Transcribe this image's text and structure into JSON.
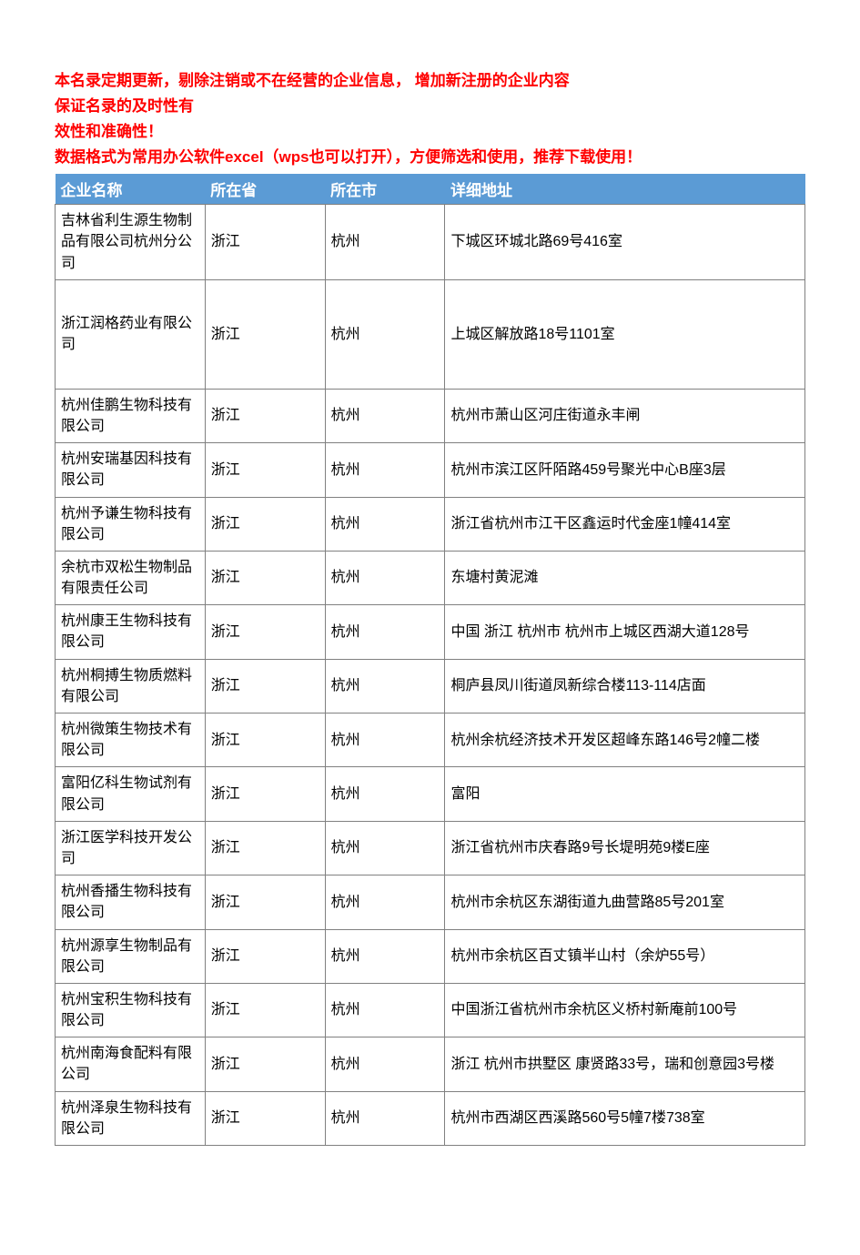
{
  "intro": {
    "line1": "本名录定期更新，剔除注销或不在经营的企业信息， 增加新注册的企业内容",
    "line2": "保证名录的及时性有",
    "line3": "效性和准确性！",
    "line4": "数据格式为常用办公软件excel（wps也可以打开），方便筛选和使用，推荐下载使用！"
  },
  "table": {
    "headers": {
      "name": "企业名称",
      "province": "所在省",
      "city": "所在市",
      "address": "详细地址"
    },
    "rows": [
      {
        "name": "吉林省利生源生物制品有限公司杭州分公司",
        "province": "浙江",
        "city": "杭州",
        "address": "下城区环城北路69号416室"
      },
      {
        "name": "浙江润格药业有限公司",
        "province": "浙江",
        "city": "杭州",
        "address": "上城区解放路18号1101室",
        "tall": true
      },
      {
        "name": "杭州佳鹏生物科技有限公司",
        "province": "浙江",
        "city": "杭州",
        "address": "杭州市萧山区河庄街道永丰闸"
      },
      {
        "name": "杭州安瑞基因科技有限公司",
        "province": "浙江",
        "city": "杭州",
        "address": "杭州市滨江区阡陌路459号聚光中心B座3层"
      },
      {
        "name": "杭州予谦生物科技有限公司",
        "province": "浙江",
        "city": "杭州",
        "address": "浙江省杭州市江干区鑫运时代金座1幢414室"
      },
      {
        "name": "余杭市双松生物制品有限责任公司",
        "province": "浙江",
        "city": "杭州",
        "address": "东塘村黄泥滩"
      },
      {
        "name": "杭州康王生物科技有限公司",
        "province": "浙江",
        "city": "杭州",
        "address": "中国  浙江  杭州市  杭州市上城区西湖大道128号"
      },
      {
        "name": "杭州桐搏生物质燃料有限公司",
        "province": "浙江",
        "city": "杭州",
        "address": "桐庐县凤川街道凤新综合楼113-114店面"
      },
      {
        "name": "杭州微策生物技术有限公司",
        "province": "浙江",
        "city": "杭州",
        "address": "杭州余杭经济技术开发区超峰东路146号2幢二楼"
      },
      {
        "name": "富阳亿科生物试剂有限公司",
        "province": "浙江",
        "city": "杭州",
        "address": "富阳"
      },
      {
        "name": "浙江医学科技开发公司",
        "province": "浙江",
        "city": "杭州",
        "address": "浙江省杭州市庆春路9号长堤明苑9楼E座"
      },
      {
        "name": "杭州香播生物科技有限公司",
        "province": "浙江",
        "city": "杭州",
        "address": "杭州市余杭区东湖街道九曲营路85号201室"
      },
      {
        "name": "杭州源享生物制品有限公司",
        "province": "浙江",
        "city": "杭州",
        "address": "杭州市余杭区百丈镇半山村（余炉55号）"
      },
      {
        "name": "杭州宝积生物科技有限公司",
        "province": "浙江",
        "city": "杭州",
        "address": "中国浙江省杭州市余杭区义桥村新庵前100号"
      },
      {
        "name": "杭州南海食配料有限公司",
        "province": "浙江",
        "city": "杭州",
        "address": "浙江  杭州市拱墅区  康贤路33号，瑞和创意园3号楼"
      },
      {
        "name": "杭州泽泉生物科技有限公司",
        "province": "浙江",
        "city": "杭州",
        "address": "杭州市西湖区西溪路560号5幢7楼738室"
      }
    ]
  },
  "styling": {
    "header_bg_color": "#5b9bd5",
    "header_text_color": "#ffffff",
    "intro_text_color": "#ff0000",
    "border_color": "#808080",
    "body_text_color": "#000000",
    "background_color": "#ffffff",
    "font_family": "Microsoft YaHei",
    "intro_font_size": 17,
    "header_font_size": 17,
    "cell_font_size": 16
  }
}
